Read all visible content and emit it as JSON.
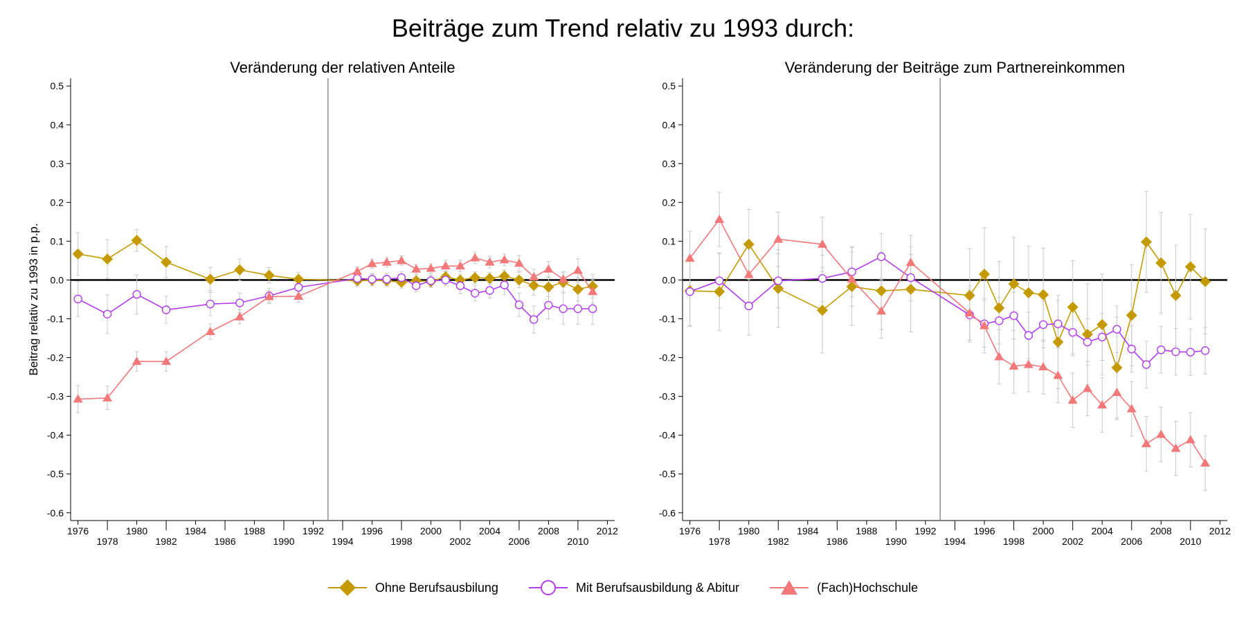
{
  "figure": {
    "title": "Beiträge zum Trend relativ zu 1993 durch:"
  },
  "legend": [
    {
      "name": "Ohne Berufsausbilung",
      "color": "#c49a00",
      "marker": "diamond"
    },
    {
      "name": "Mit Berufsausbildung & Abitur",
      "color": "#b23cf0",
      "marker": "hollow-circle"
    },
    {
      "name": "(Fach)Hochschule",
      "color": "#f2787a",
      "marker": "triangle"
    }
  ],
  "chart_data": [
    {
      "type": "line",
      "title": "Veränderung der relativen Anteile",
      "ylabel": "Beitrag relativ zu 1993 in p.p.",
      "xlabel": "",
      "xlim": [
        1975.5,
        2012.5
      ],
      "ylim": [
        -0.62,
        0.52
      ],
      "yticks": [
        0.5,
        0.4,
        0.3,
        0.2,
        0.1,
        0.0,
        -0.1,
        -0.2,
        -0.3,
        -0.4,
        -0.5,
        -0.6
      ],
      "ytick_labels": [
        "0.5",
        "0.4",
        "0.3",
        "0.2",
        "0.1",
        "0.0",
        "-0.1",
        "-0.2",
        "-0.3",
        "-0.4",
        "-0.5",
        "-0.6"
      ],
      "xticks": [
        1976,
        1978,
        1980,
        1982,
        1984,
        1986,
        1988,
        1990,
        1992,
        1994,
        1996,
        1998,
        2000,
        2002,
        2004,
        2006,
        2008,
        2010,
        2012
      ],
      "xtick_labels": [
        "1976",
        "1978",
        "1980",
        "1982",
        "1984",
        "1986",
        "1988",
        "1990",
        "1992",
        "1994",
        "1996",
        "1998",
        "2000",
        "2002",
        "2004",
        "2006",
        "2008",
        "2010",
        "2012"
      ],
      "reference_line_x": 1993,
      "zero_line": 0,
      "series": [
        {
          "name": "Ohne Berufsausbilung",
          "color": "#c49a00",
          "marker": "diamond",
          "points": [
            [
              1976,
              0.067,
              0.055
            ],
            [
              1978,
              0.054,
              0.05
            ],
            [
              1980,
              0.102,
              0.028
            ],
            [
              1982,
              0.046,
              0.04
            ],
            [
              1985,
              0.002,
              0.03
            ],
            [
              1987,
              0.026,
              0.028
            ],
            [
              1989,
              0.012,
              0.02
            ],
            [
              1991,
              0.002,
              0.018
            ],
            [
              1995,
              -0.002,
              0.015
            ],
            [
              1996,
              0.0,
              0.015
            ],
            [
              1997,
              -0.002,
              0.015
            ],
            [
              1998,
              -0.006,
              0.015
            ],
            [
              1999,
              -0.002,
              0.015
            ],
            [
              2000,
              -0.004,
              0.015
            ],
            [
              2001,
              0.008,
              0.015
            ],
            [
              2002,
              0.0,
              0.015
            ],
            [
              2003,
              0.006,
              0.015
            ],
            [
              2004,
              0.004,
              0.015
            ],
            [
              2005,
              0.01,
              0.015
            ],
            [
              2006,
              0.0,
              0.02
            ],
            [
              2007,
              -0.014,
              0.025
            ],
            [
              2008,
              -0.018,
              0.025
            ],
            [
              2009,
              -0.006,
              0.025
            ],
            [
              2010,
              -0.024,
              0.03
            ],
            [
              2011,
              -0.016,
              0.03
            ]
          ]
        },
        {
          "name": "Mit Berufsausbildung & Abitur",
          "color": "#b23cf0",
          "marker": "hollow-circle",
          "points": [
            [
              1976,
              -0.049,
              0.045
            ],
            [
              1978,
              -0.088,
              0.05
            ],
            [
              1980,
              -0.037,
              0.05
            ],
            [
              1982,
              -0.077,
              0.035
            ],
            [
              1985,
              -0.062,
              0.03
            ],
            [
              1987,
              -0.059,
              0.025
            ],
            [
              1989,
              -0.041,
              0.02
            ],
            [
              1991,
              -0.019,
              0.018
            ],
            [
              1995,
              0.004,
              0.015
            ],
            [
              1996,
              0.002,
              0.015
            ],
            [
              1997,
              0.002,
              0.015
            ],
            [
              1998,
              0.006,
              0.015
            ],
            [
              1999,
              -0.015,
              0.015
            ],
            [
              2000,
              -0.002,
              0.015
            ],
            [
              2001,
              0.0,
              0.015
            ],
            [
              2002,
              -0.015,
              0.02
            ],
            [
              2003,
              -0.034,
              0.02
            ],
            [
              2004,
              -0.027,
              0.02
            ],
            [
              2005,
              -0.013,
              0.025
            ],
            [
              2006,
              -0.064,
              0.03
            ],
            [
              2007,
              -0.102,
              0.035
            ],
            [
              2008,
              -0.065,
              0.035
            ],
            [
              2009,
              -0.074,
              0.04
            ],
            [
              2010,
              -0.074,
              0.04
            ],
            [
              2011,
              -0.074,
              0.04
            ]
          ]
        },
        {
          "name": "(Fach)Hochschule",
          "color": "#f2787a",
          "marker": "triangle",
          "points": [
            [
              1976,
              -0.307,
              0.035
            ],
            [
              1978,
              -0.304,
              0.03
            ],
            [
              1980,
              -0.21,
              0.025
            ],
            [
              1982,
              -0.21,
              0.025
            ],
            [
              1985,
              -0.133,
              0.02
            ],
            [
              1987,
              -0.095,
              0.018
            ],
            [
              1989,
              -0.043,
              0.015
            ],
            [
              1991,
              -0.042,
              0.015
            ],
            [
              1995,
              0.022,
              0.012
            ],
            [
              1996,
              0.042,
              0.012
            ],
            [
              1997,
              0.046,
              0.012
            ],
            [
              1998,
              0.05,
              0.012
            ],
            [
              1999,
              0.028,
              0.012
            ],
            [
              2000,
              0.03,
              0.012
            ],
            [
              2001,
              0.036,
              0.015
            ],
            [
              2002,
              0.036,
              0.015
            ],
            [
              2003,
              0.057,
              0.015
            ],
            [
              2004,
              0.046,
              0.015
            ],
            [
              2005,
              0.052,
              0.015
            ],
            [
              2006,
              0.043,
              0.02
            ],
            [
              2007,
              0.008,
              0.02
            ],
            [
              2008,
              0.028,
              0.02
            ],
            [
              2009,
              0.002,
              0.02
            ],
            [
              2010,
              0.025,
              0.03
            ],
            [
              2011,
              -0.03,
              0.03
            ]
          ]
        }
      ]
    },
    {
      "type": "line",
      "title": "Veränderung der Beiträge zum Partnereinkommen",
      "ylabel": "",
      "xlabel": "",
      "xlim": [
        1975.5,
        2012.5
      ],
      "ylim": [
        -0.62,
        0.52
      ],
      "yticks": [
        0.5,
        0.4,
        0.3,
        0.2,
        0.1,
        0.0,
        -0.1,
        -0.2,
        -0.3,
        -0.4,
        -0.5,
        -0.6
      ],
      "ytick_labels": [
        "0.5",
        "0.4",
        "0.3",
        "0.2",
        "0.1",
        "0.0",
        "-0.1",
        "-0.2",
        "-0.3",
        "-0.4",
        "-0.5",
        "-0.6"
      ],
      "xticks": [
        1976,
        1978,
        1980,
        1982,
        1984,
        1986,
        1988,
        1990,
        1992,
        1994,
        1996,
        1998,
        2000,
        2002,
        2004,
        2006,
        2008,
        2010,
        2012
      ],
      "xtick_labels": [
        "1976",
        "1978",
        "1980",
        "1982",
        "1984",
        "1986",
        "1988",
        "1990",
        "1992",
        "1994",
        "1996",
        "1998",
        "2000",
        "2002",
        "2004",
        "2006",
        "2008",
        "2010",
        "2012"
      ],
      "reference_line_x": 1993,
      "zero_line": 0,
      "series": [
        {
          "name": "Ohne Berufsausbilung",
          "color": "#c49a00",
          "marker": "diamond",
          "points": [
            [
              1976,
              -0.028,
              0.09
            ],
            [
              1978,
              -0.03,
              0.1
            ],
            [
              1980,
              0.092,
              0.09
            ],
            [
              1982,
              -0.022,
              0.1
            ],
            [
              1985,
              -0.078,
              0.11
            ],
            [
              1987,
              -0.017,
              0.1
            ],
            [
              1989,
              -0.028,
              0.1
            ],
            [
              1991,
              -0.024,
              0.11
            ],
            [
              1995,
              -0.04,
              0.12
            ],
            [
              1996,
              0.015,
              0.12
            ],
            [
              1997,
              -0.072,
              0.12
            ],
            [
              1998,
              -0.01,
              0.12
            ],
            [
              1999,
              -0.033,
              0.12
            ],
            [
              2000,
              -0.038,
              0.12
            ],
            [
              2001,
              -0.16,
              0.12
            ],
            [
              2002,
              -0.07,
              0.12
            ],
            [
              2003,
              -0.14,
              0.13
            ],
            [
              2004,
              -0.115,
              0.13
            ],
            [
              2005,
              -0.226,
              0.13
            ],
            [
              2006,
              -0.091,
              0.13
            ],
            [
              2007,
              0.098,
              0.13
            ],
            [
              2008,
              0.044,
              0.13
            ],
            [
              2009,
              -0.04,
              0.13
            ],
            [
              2010,
              0.034,
              0.135
            ],
            [
              2011,
              -0.004,
              0.135
            ]
          ]
        },
        {
          "name": "Mit Berufsausbildung & Abitur",
          "color": "#b23cf0",
          "marker": "hollow-circle",
          "points": [
            [
              1976,
              -0.03,
              0.09
            ],
            [
              1978,
              -0.002,
              0.07
            ],
            [
              1980,
              -0.067,
              0.075
            ],
            [
              1982,
              -0.002,
              0.07
            ],
            [
              1985,
              0.004,
              0.06
            ],
            [
              1987,
              0.021,
              0.065
            ],
            [
              1989,
              0.06,
              0.06
            ],
            [
              1991,
              0.006,
              0.06
            ],
            [
              1995,
              -0.09,
              0.065
            ],
            [
              1996,
              -0.113,
              0.06
            ],
            [
              1997,
              -0.105,
              0.06
            ],
            [
              1998,
              -0.092,
              0.06
            ],
            [
              1999,
              -0.143,
              0.06
            ],
            [
              2000,
              -0.115,
              0.06
            ],
            [
              2001,
              -0.113,
              0.06
            ],
            [
              2002,
              -0.135,
              0.06
            ],
            [
              2003,
              -0.16,
              0.06
            ],
            [
              2004,
              -0.147,
              0.06
            ],
            [
              2005,
              -0.127,
              0.06
            ],
            [
              2006,
              -0.178,
              0.06
            ],
            [
              2007,
              -0.218,
              0.06
            ],
            [
              2008,
              -0.18,
              0.06
            ],
            [
              2009,
              -0.185,
              0.06
            ],
            [
              2010,
              -0.186,
              0.06
            ],
            [
              2011,
              -0.182,
              0.06
            ]
          ]
        },
        {
          "name": "(Fach)Hochschule",
          "color": "#f2787a",
          "marker": "triangle",
          "points": [
            [
              1976,
              0.056,
              0.07
            ],
            [
              1978,
              0.156,
              0.07
            ],
            [
              1980,
              0.014,
              0.07
            ],
            [
              1982,
              0.105,
              0.07
            ],
            [
              1985,
              0.092,
              0.07
            ],
            [
              1987,
              0.002,
              0.07
            ],
            [
              1989,
              -0.08,
              0.07
            ],
            [
              1991,
              0.045,
              0.07
            ],
            [
              1995,
              -0.085,
              0.07
            ],
            [
              1996,
              -0.118,
              0.07
            ],
            [
              1997,
              -0.198,
              0.07
            ],
            [
              1998,
              -0.222,
              0.07
            ],
            [
              1999,
              -0.218,
              0.07
            ],
            [
              2000,
              -0.224,
              0.07
            ],
            [
              2001,
              -0.246,
              0.07
            ],
            [
              2002,
              -0.31,
              0.07
            ],
            [
              2003,
              -0.28,
              0.07
            ],
            [
              2004,
              -0.322,
              0.07
            ],
            [
              2005,
              -0.29,
              0.07
            ],
            [
              2006,
              -0.332,
              0.07
            ],
            [
              2007,
              -0.422,
              0.07
            ],
            [
              2008,
              -0.398,
              0.07
            ],
            [
              2009,
              -0.434,
              0.07
            ],
            [
              2010,
              -0.412,
              0.07
            ],
            [
              2011,
              -0.472,
              0.07
            ]
          ]
        }
      ]
    }
  ]
}
